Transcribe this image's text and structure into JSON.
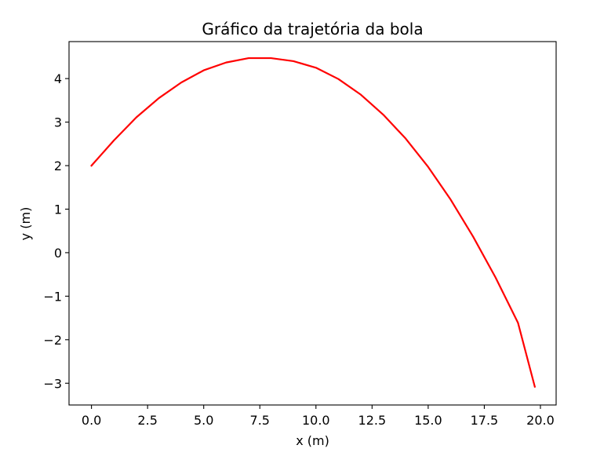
{
  "chart_data": {
    "type": "line",
    "title": "Gráfico da trajetória da bola",
    "xlabel": "x (m)",
    "ylabel": "y (m)",
    "xlim": [
      -1.0,
      20.7
    ],
    "ylim": [
      -3.5,
      4.85
    ],
    "xticks": [
      0.0,
      2.5,
      5.0,
      7.5,
      10.0,
      12.5,
      15.0,
      17.5,
      20.0
    ],
    "xtick_labels": [
      "0.0",
      "2.5",
      "5.0",
      "7.5",
      "10.0",
      "12.5",
      "15.0",
      "17.5",
      "20.0"
    ],
    "yticks": [
      -3,
      -2,
      -1,
      0,
      1,
      2,
      3,
      4
    ],
    "ytick_labels": [
      "−3",
      "−2",
      "−1",
      "0",
      "1",
      "2",
      "3",
      "4"
    ],
    "grid": false,
    "series": [
      {
        "color": "#ff0000",
        "x": [
          0.0,
          1.0,
          2.0,
          3.0,
          4.0,
          5.0,
          6.0,
          7.0,
          8.0,
          9.0,
          10.0,
          11.0,
          12.0,
          13.0,
          14.0,
          15.0,
          16.0,
          17.0,
          18.0,
          19.0,
          19.75
        ],
        "y": [
          2.0,
          2.58,
          3.11,
          3.55,
          3.91,
          4.19,
          4.37,
          4.47,
          4.47,
          4.4,
          4.25,
          3.99,
          3.63,
          3.17,
          2.62,
          1.97,
          1.22,
          0.37,
          -0.57,
          -1.61,
          -3.08
        ]
      }
    ]
  }
}
